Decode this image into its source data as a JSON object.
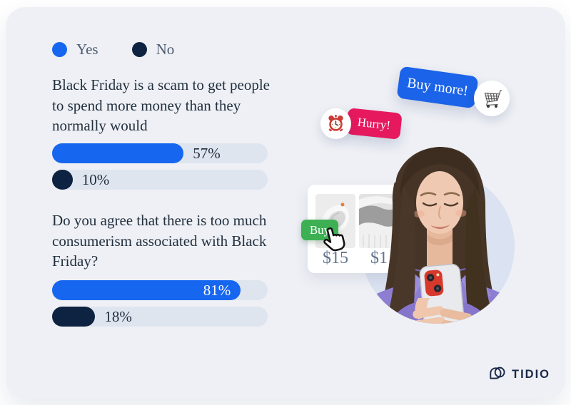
{
  "card": {
    "background": "#eef0f5"
  },
  "colors": {
    "yes_blue": "#1666f0",
    "no_navy": "#0e2342",
    "track": "#dfe5ee",
    "badge_blue": "#1b63e8",
    "badge_pink": "#e6195e",
    "buy_green": "#3db054",
    "circle_blue": "#dbe2f1",
    "brand_navy": "#1b2949"
  },
  "legend": {
    "items": [
      {
        "label": "Yes",
        "color": "#1666f0"
      },
      {
        "label": "No",
        "color": "#0e2342"
      }
    ]
  },
  "chart_data": {
    "type": "bar",
    "unit": "%",
    "legend": [
      "Yes",
      "No"
    ],
    "track_color": "#dfe5ee",
    "questions": [
      {
        "text": "Black Friday is a scam to get people\nto spend more money than they\nnormally would",
        "bars": [
          {
            "option": "Yes",
            "value": 57,
            "label": "57%",
            "color": "#1666f0",
            "width_pct": 61,
            "label_inside": false
          },
          {
            "option": "No",
            "value": 10,
            "label": "10%",
            "color": "#0e2342",
            "width_pct": 9.5,
            "label_inside": false
          }
        ]
      },
      {
        "text": "Do you agree that there is too much\nconsumerism associated with Black\nFriday?",
        "bars": [
          {
            "option": "Yes",
            "value": 81,
            "label": "81%",
            "color": "#1666f0",
            "width_pct": 87.5,
            "label_inside": true
          },
          {
            "option": "No",
            "value": 18,
            "label": "18%",
            "color": "#0e2342",
            "width_pct": 20,
            "label_inside": false
          }
        ]
      }
    ]
  },
  "illustration": {
    "badges": {
      "buy_more": {
        "label": "Buy more!",
        "color": "#1b63e8",
        "icon": "shopping-cart"
      },
      "hurry": {
        "label": "Hurry!",
        "color": "#e6195e",
        "icon": "alarm-clock"
      }
    },
    "shop": {
      "buy_label": "Buy",
      "price_1": "$15",
      "price_2": "$1"
    }
  },
  "footer": {
    "brand": "TIDIO"
  }
}
